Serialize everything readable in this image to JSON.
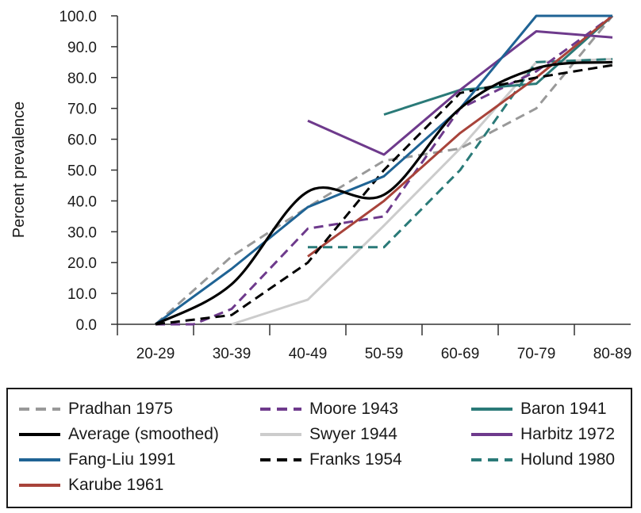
{
  "chart_data": {
    "type": "line",
    "title": "",
    "xlabel": "",
    "ylabel": "Percent prevalence",
    "ylim": [
      0,
      100
    ],
    "yticks": [
      "0.0",
      "10.0",
      "20.0",
      "30.0",
      "40.0",
      "50.0",
      "60.0",
      "70.0",
      "80.0",
      "90.0",
      "100.0"
    ],
    "categories": [
      "20-29",
      "30-39",
      "40-49",
      "50-59",
      "60-69",
      "70-79",
      "80-89"
    ],
    "grid": false,
    "legend_position": "bottom",
    "series": [
      {
        "name": "Pradhan 1975",
        "color": "#999999",
        "dash": "dashed",
        "smooth": false,
        "points": [
          [
            0,
            0
          ],
          [
            1,
            22
          ],
          [
            2,
            38
          ],
          [
            3,
            53
          ],
          [
            4,
            57
          ],
          [
            5,
            70
          ],
          [
            6,
            100
          ]
        ]
      },
      {
        "name": "Moore 1943",
        "color": "#6e3a8c",
        "dash": "dashed",
        "smooth": false,
        "points": [
          [
            0,
            0
          ],
          [
            0.5,
            0
          ],
          [
            1,
            5
          ],
          [
            2,
            31
          ],
          [
            3,
            35
          ],
          [
            4,
            70
          ],
          [
            5,
            82
          ],
          [
            6,
            100
          ]
        ]
      },
      {
        "name": "Baron 1941",
        "color": "#2a7a78",
        "dash": "solid",
        "smooth": false,
        "points": [
          [
            3,
            68
          ],
          [
            4,
            76
          ],
          [
            5,
            78
          ],
          [
            6,
            100
          ]
        ]
      },
      {
        "name": "Average (smoothed)",
        "color": "#000000",
        "dash": "solid",
        "smooth": true,
        "points": [
          [
            0,
            0
          ],
          [
            1,
            13
          ],
          [
            2,
            43
          ],
          [
            3,
            42
          ],
          [
            4,
            70
          ],
          [
            5,
            83
          ],
          [
            6,
            85
          ]
        ]
      },
      {
        "name": "Swyer 1944",
        "color": "#cccccc",
        "dash": "solid",
        "smooth": false,
        "points": [
          [
            1,
            0
          ],
          [
            2,
            8
          ],
          [
            3,
            32
          ],
          [
            4,
            57
          ],
          [
            5,
            85
          ],
          [
            6,
            86
          ]
        ]
      },
      {
        "name": "Harbitz 1972",
        "color": "#6e3a8c",
        "dash": "solid",
        "smooth": false,
        "points": [
          [
            2,
            66
          ],
          [
            3,
            55
          ],
          [
            4,
            76
          ],
          [
            5,
            95
          ],
          [
            6,
            93
          ]
        ]
      },
      {
        "name": "Fang-Liu 1991",
        "color": "#1f6394",
        "dash": "solid",
        "smooth": false,
        "points": [
          [
            0,
            0
          ],
          [
            1,
            18
          ],
          [
            2,
            38
          ],
          [
            3,
            48
          ],
          [
            4,
            70
          ],
          [
            5,
            100
          ],
          [
            6,
            100
          ]
        ]
      },
      {
        "name": "Franks 1954",
        "color": "#000000",
        "dash": "dashed",
        "smooth": false,
        "points": [
          [
            0,
            0
          ],
          [
            1,
            3
          ],
          [
            2,
            20
          ],
          [
            3,
            50
          ],
          [
            4,
            75
          ],
          [
            5,
            80
          ],
          [
            6,
            84
          ]
        ]
      },
      {
        "name": "Holund 1980",
        "color": "#2a7a78",
        "dash": "dashed",
        "smooth": false,
        "points": [
          [
            2,
            25
          ],
          [
            3,
            25
          ],
          [
            4,
            50
          ],
          [
            5,
            85
          ],
          [
            6,
            86
          ]
        ]
      },
      {
        "name": "Karube 1961",
        "color": "#a8433a",
        "dash": "solid",
        "smooth": false,
        "points": [
          [
            2,
            22
          ],
          [
            3,
            40
          ],
          [
            4,
            62
          ],
          [
            5,
            80
          ],
          [
            6,
            100
          ]
        ]
      }
    ]
  }
}
